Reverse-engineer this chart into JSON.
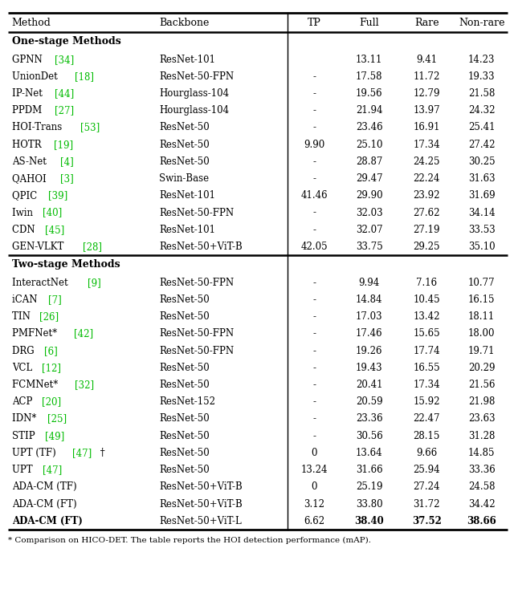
{
  "headers": [
    "Method",
    "Backbone",
    "TP",
    "Full",
    "Rare",
    "Non-rare"
  ],
  "section1_title": "One-stage Methods",
  "section2_title": "Two-stage Methods",
  "one_stage": [
    {
      "method": "GPNN",
      "ref": "34",
      "suffix": "",
      "backbone": "ResNet-101",
      "tp": "",
      "full": "13.11",
      "rare": "9.41",
      "nonrare": "14.23",
      "bold": false
    },
    {
      "method": "UnionDet",
      "ref": "18",
      "suffix": "",
      "backbone": "ResNet-50-FPN",
      "tp": "-",
      "full": "17.58",
      "rare": "11.72",
      "nonrare": "19.33",
      "bold": false
    },
    {
      "method": "IP-Net",
      "ref": "44",
      "suffix": "",
      "backbone": "Hourglass-104",
      "tp": "-",
      "full": "19.56",
      "rare": "12.79",
      "nonrare": "21.58",
      "bold": false
    },
    {
      "method": "PPDM",
      "ref": "27",
      "suffix": "",
      "backbone": "Hourglass-104",
      "tp": "-",
      "full": "21.94",
      "rare": "13.97",
      "nonrare": "24.32",
      "bold": false
    },
    {
      "method": "HOI-Trans",
      "ref": "53",
      "suffix": "",
      "backbone": "ResNet-50",
      "tp": "-",
      "full": "23.46",
      "rare": "16.91",
      "nonrare": "25.41",
      "bold": false
    },
    {
      "method": "HOTR",
      "ref": "19",
      "suffix": "",
      "backbone": "ResNet-50",
      "tp": "9.90",
      "full": "25.10",
      "rare": "17.34",
      "nonrare": "27.42",
      "bold": false
    },
    {
      "method": "AS-Net",
      "ref": "4",
      "suffix": "",
      "backbone": "ResNet-50",
      "tp": "-",
      "full": "28.87",
      "rare": "24.25",
      "nonrare": "30.25",
      "bold": false
    },
    {
      "method": "QAHOI",
      "ref": "3",
      "suffix": "",
      "backbone": "Swin-Base",
      "tp": "-",
      "full": "29.47",
      "rare": "22.24",
      "nonrare": "31.63",
      "bold": false
    },
    {
      "method": "QPIC",
      "ref": "39",
      "suffix": "",
      "backbone": "ResNet-101",
      "tp": "41.46",
      "full": "29.90",
      "rare": "23.92",
      "nonrare": "31.69",
      "bold": false
    },
    {
      "method": "Iwin",
      "ref": "40",
      "suffix": "",
      "backbone": "ResNet-50-FPN",
      "tp": "-",
      "full": "32.03",
      "rare": "27.62",
      "nonrare": "34.14",
      "bold": false
    },
    {
      "method": "CDN",
      "ref": "45",
      "suffix": "",
      "backbone": "ResNet-101",
      "tp": "-",
      "full": "32.07",
      "rare": "27.19",
      "nonrare": "33.53",
      "bold": false
    },
    {
      "method": "GEN-VLKT",
      "ref": "28",
      "suffix": "",
      "backbone": "ResNet-50+ViT-B",
      "tp": "42.05",
      "full": "33.75",
      "rare": "29.25",
      "nonrare": "35.10",
      "bold": false
    }
  ],
  "two_stage": [
    {
      "method": "InteractNet",
      "ref": "9",
      "suffix": "",
      "backbone": "ResNet-50-FPN",
      "tp": "-",
      "full": "9.94",
      "rare": "7.16",
      "nonrare": "10.77",
      "bold": false
    },
    {
      "method": "iCAN",
      "ref": "7",
      "suffix": "",
      "backbone": "ResNet-50",
      "tp": "-",
      "full": "14.84",
      "rare": "10.45",
      "nonrare": "16.15",
      "bold": false
    },
    {
      "method": "TIN",
      "ref": "26",
      "suffix": "",
      "backbone": "ResNet-50",
      "tp": "-",
      "full": "17.03",
      "rare": "13.42",
      "nonrare": "18.11",
      "bold": false
    },
    {
      "method": "PMFNet*",
      "ref": "42",
      "suffix": "",
      "backbone": "ResNet-50-FPN",
      "tp": "-",
      "full": "17.46",
      "rare": "15.65",
      "nonrare": "18.00",
      "bold": false
    },
    {
      "method": "DRG",
      "ref": "6",
      "suffix": "",
      "backbone": "ResNet-50-FPN",
      "tp": "-",
      "full": "19.26",
      "rare": "17.74",
      "nonrare": "19.71",
      "bold": false
    },
    {
      "method": "VCL",
      "ref": "12",
      "suffix": "",
      "backbone": "ResNet-50",
      "tp": "-",
      "full": "19.43",
      "rare": "16.55",
      "nonrare": "20.29",
      "bold": false
    },
    {
      "method": "FCMNet*",
      "ref": "32",
      "suffix": "",
      "backbone": "ResNet-50",
      "tp": "-",
      "full": "20.41",
      "rare": "17.34",
      "nonrare": "21.56",
      "bold": false
    },
    {
      "method": "ACP",
      "ref": "20",
      "suffix": "",
      "backbone": "ResNet-152",
      "tp": "-",
      "full": "20.59",
      "rare": "15.92",
      "nonrare": "21.98",
      "bold": false
    },
    {
      "method": "IDN*",
      "ref": "25",
      "suffix": "",
      "backbone": "ResNet-50",
      "tp": "-",
      "full": "23.36",
      "rare": "22.47",
      "nonrare": "23.63",
      "bold": false
    },
    {
      "method": "STIP",
      "ref": "49",
      "suffix": "",
      "backbone": "ResNet-50",
      "tp": "-",
      "full": "30.56",
      "rare": "28.15",
      "nonrare": "31.28",
      "bold": false
    },
    {
      "method": "UPT (TF)",
      "ref": "47",
      "suffix": " †",
      "backbone": "ResNet-50",
      "tp": "0",
      "full": "13.64",
      "rare": "9.66",
      "nonrare": "14.85",
      "bold": false
    },
    {
      "method": "UPT",
      "ref": "47",
      "suffix": "",
      "backbone": "ResNet-50",
      "tp": "13.24",
      "full": "31.66",
      "rare": "25.94",
      "nonrare": "33.36",
      "bold": false
    },
    {
      "method": "ADA-CM (TF)",
      "ref": "",
      "suffix": "",
      "backbone": "ResNet-50+ViT-B",
      "tp": "0",
      "full": "25.19",
      "rare": "27.24",
      "nonrare": "24.58",
      "bold": false
    },
    {
      "method": "ADA-CM (FT)",
      "ref": "",
      "suffix": "",
      "backbone": "ResNet-50+ViT-B",
      "tp": "3.12",
      "full": "33.80",
      "rare": "31.72",
      "nonrare": "34.42",
      "bold": false
    },
    {
      "method": "ADA-CM (FT)",
      "ref": "",
      "suffix": "",
      "backbone": "ResNet-50+ViT-L",
      "tp": "6.62",
      "full": "38.40",
      "rare": "37.52",
      "nonrare": "38.66",
      "bold": true
    }
  ],
  "ref_color": "#00bb00",
  "footnote_text": "* Comparison on HICO-DET. The table reports the HOI detection performance (mAP).",
  "figwidth": 6.4,
  "figheight": 7.39,
  "dpi": 100
}
